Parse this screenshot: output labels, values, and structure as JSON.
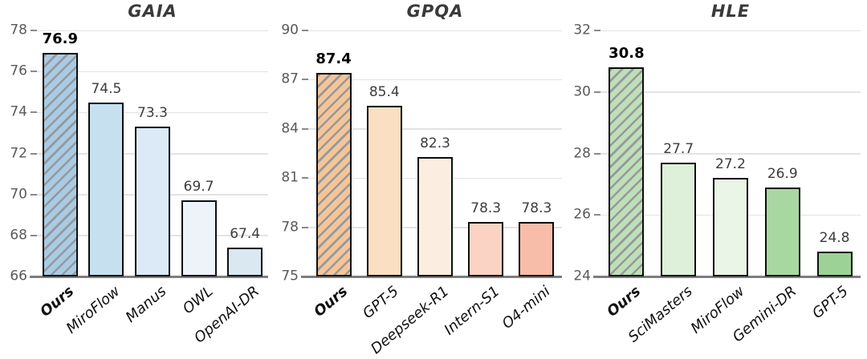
{
  "figure": {
    "background": "#ffffff",
    "grid_color": "#e3e3e3",
    "baseline_color": "#7d7d7d",
    "tick_color": "#8a8a8a",
    "tick_label_color": "#595959",
    "title_color": "#3a3a3a",
    "value_label_color": "#3c3c3c",
    "value_label_bold_color": "#000000",
    "bar_border_color": "#0d0d0d",
    "hatch_color": "#95999f"
  },
  "chart_data": [
    {
      "type": "bar",
      "title": "GAIA",
      "categories": [
        "Ours",
        "MiroFlow",
        "Manus",
        "OWL",
        "OpenAI-DR"
      ],
      "values": [
        76.9,
        74.5,
        73.3,
        69.7,
        67.4
      ],
      "value_labels": [
        "76.9",
        "74.5",
        "73.3",
        "69.7",
        "67.4"
      ],
      "ylim": [
        66,
        78
      ],
      "yticks": [
        66,
        68,
        70,
        72,
        74,
        76,
        78
      ],
      "bar_colors": [
        "#a9cbe3",
        "#c7e0f0",
        "#dbeaf6",
        "#eef3fa",
        "#d9e8f1"
      ],
      "hatched_bar_index": 0,
      "emphasized_index": 0,
      "xlabel": "",
      "ylabel": "",
      "grid": true,
      "legend": null
    },
    {
      "type": "bar",
      "title": "GPQA",
      "categories": [
        "Ours",
        "GPT-5",
        "Deepseek-R1",
        "Intern-S1",
        "O4-mini"
      ],
      "values": [
        87.4,
        85.4,
        82.3,
        78.3,
        78.3
      ],
      "value_labels": [
        "87.4",
        "85.4",
        "82.3",
        "78.3",
        "78.3"
      ],
      "ylim": [
        75,
        90
      ],
      "yticks": [
        75,
        78,
        81,
        84,
        87,
        90
      ],
      "bar_colors": [
        "#f5c597",
        "#fadfc2",
        "#fbeee0",
        "#fad3c4",
        "#f8bda8"
      ],
      "hatched_bar_index": 0,
      "emphasized_index": 0,
      "xlabel": "",
      "ylabel": "",
      "grid": true,
      "legend": null
    },
    {
      "type": "bar",
      "title": "HLE",
      "categories": [
        "Ours",
        "SciMasters",
        "MiroFlow",
        "Gemini-DR",
        "GPT-5"
      ],
      "values": [
        30.8,
        27.7,
        27.2,
        26.9,
        24.8
      ],
      "value_labels": [
        "30.8",
        "27.7",
        "27.2",
        "26.9",
        "24.8"
      ],
      "ylim": [
        24,
        32
      ],
      "yticks": [
        24,
        26,
        28,
        30,
        32
      ],
      "bar_colors": [
        "#bfdfb7",
        "#def0d9",
        "#ebf5e7",
        "#a9d7a1",
        "#9cd295"
      ],
      "hatched_bar_index": 0,
      "emphasized_index": 0,
      "xlabel": "",
      "ylabel": "",
      "grid": true,
      "legend": null
    }
  ]
}
